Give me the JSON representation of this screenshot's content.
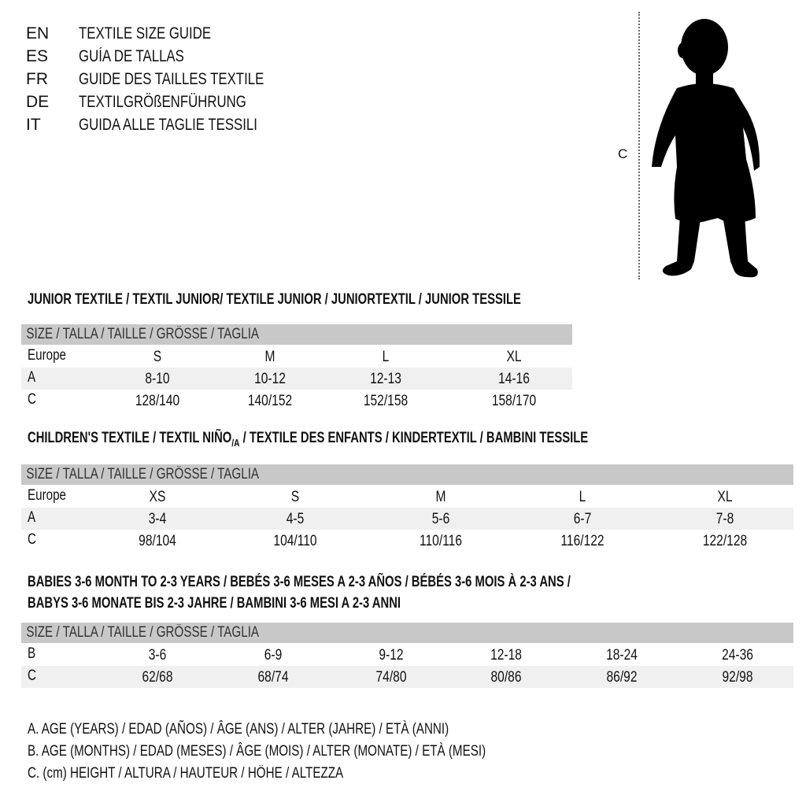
{
  "header": {
    "languages": [
      {
        "code": "EN",
        "title": "TEXTILE SIZE GUIDE"
      },
      {
        "code": "ES",
        "title": "GUÍA DE TALLAS"
      },
      {
        "code": "FR",
        "title": "GUIDE DES TAILLES TEXTILE"
      },
      {
        "code": "DE",
        "title": "TEXTILGRÖßENFÜHRUNG"
      },
      {
        "code": "IT",
        "title": "GUIDA ALLE TAGLIE TESSILI"
      }
    ]
  },
  "figure": {
    "measure_label": "C",
    "icon": "child-silhouette"
  },
  "junior": {
    "heading": "JUNIOR TEXTILE / TEXTIL JUNIOR/ TEXTILE JUNIOR / JUNIORTEXTIL / JUNIOR TESSILE",
    "size_header": "SIZE / TALLA / TAILLE / GRÖSSE / TAGLIA",
    "rows": [
      {
        "label": "Europe",
        "values": [
          "S",
          "M",
          "L",
          "XL"
        ]
      },
      {
        "label": "A",
        "values": [
          "8-10",
          "10-12",
          "12-13",
          "14-16"
        ]
      },
      {
        "label": "C",
        "values": [
          "128/140",
          "140/152",
          "152/158",
          "158/170"
        ]
      }
    ]
  },
  "children": {
    "heading_a": "CHILDREN'S TEXTILE / TEXTIL NIÑO",
    "heading_sub": "/A",
    "heading_b": " / TEXTILE DES ENFANTS / KINDERTEXTIL / BAMBINI TESSILE",
    "size_header": "SIZE / TALLA / TAILLE / GRÖSSE / TAGLIA",
    "rows": [
      {
        "label": "Europe",
        "values": [
          "XS",
          "S",
          "M",
          "L",
          "XL"
        ]
      },
      {
        "label": "A",
        "values": [
          "3-4",
          "4-5",
          "5-6",
          "6-7",
          "7-8"
        ]
      },
      {
        "label": "C",
        "values": [
          "98/104",
          "104/110",
          "110/116",
          "116/122",
          "122/128"
        ]
      }
    ]
  },
  "babies": {
    "heading_line1": "BABIES 3-6 MONTH TO 2-3 YEARS / BEBÉS 3-6 MESES A 2-3 AÑOS / BÉBÉS 3-6 MOIS À 2-3 ANS /",
    "heading_line2": "BABYS 3-6 MONATE BIS 2-3 JAHRE / BAMBINI 3-6 MESI A 2-3 ANNI",
    "size_header": "SIZE / TALLA / TAILLE / GRÖSSE / TAGLIA",
    "rows": [
      {
        "label": "B",
        "values": [
          "3-6",
          "6-9",
          "9-12",
          "12-18",
          "18-24",
          "24-36"
        ]
      },
      {
        "label": "C",
        "values": [
          "62/68",
          "68/74",
          "74/80",
          "80/86",
          "86/92",
          "92/98"
        ]
      }
    ]
  },
  "legend": [
    "A. AGE (YEARS) / EDAD (AÑOS) / ÂGE (ANS) / ALTER (JAHRE) / ETÀ (ANNI)",
    "B. AGE (MONTHS) / EDAD (MESES) / ÂGE (MOIS) / ALTER (MONATE) / ETÀ (MESI)",
    "C. (cm) HEIGHT / ALTURA / HAUTEUR / HÖHE / ALTEZZA"
  ]
}
